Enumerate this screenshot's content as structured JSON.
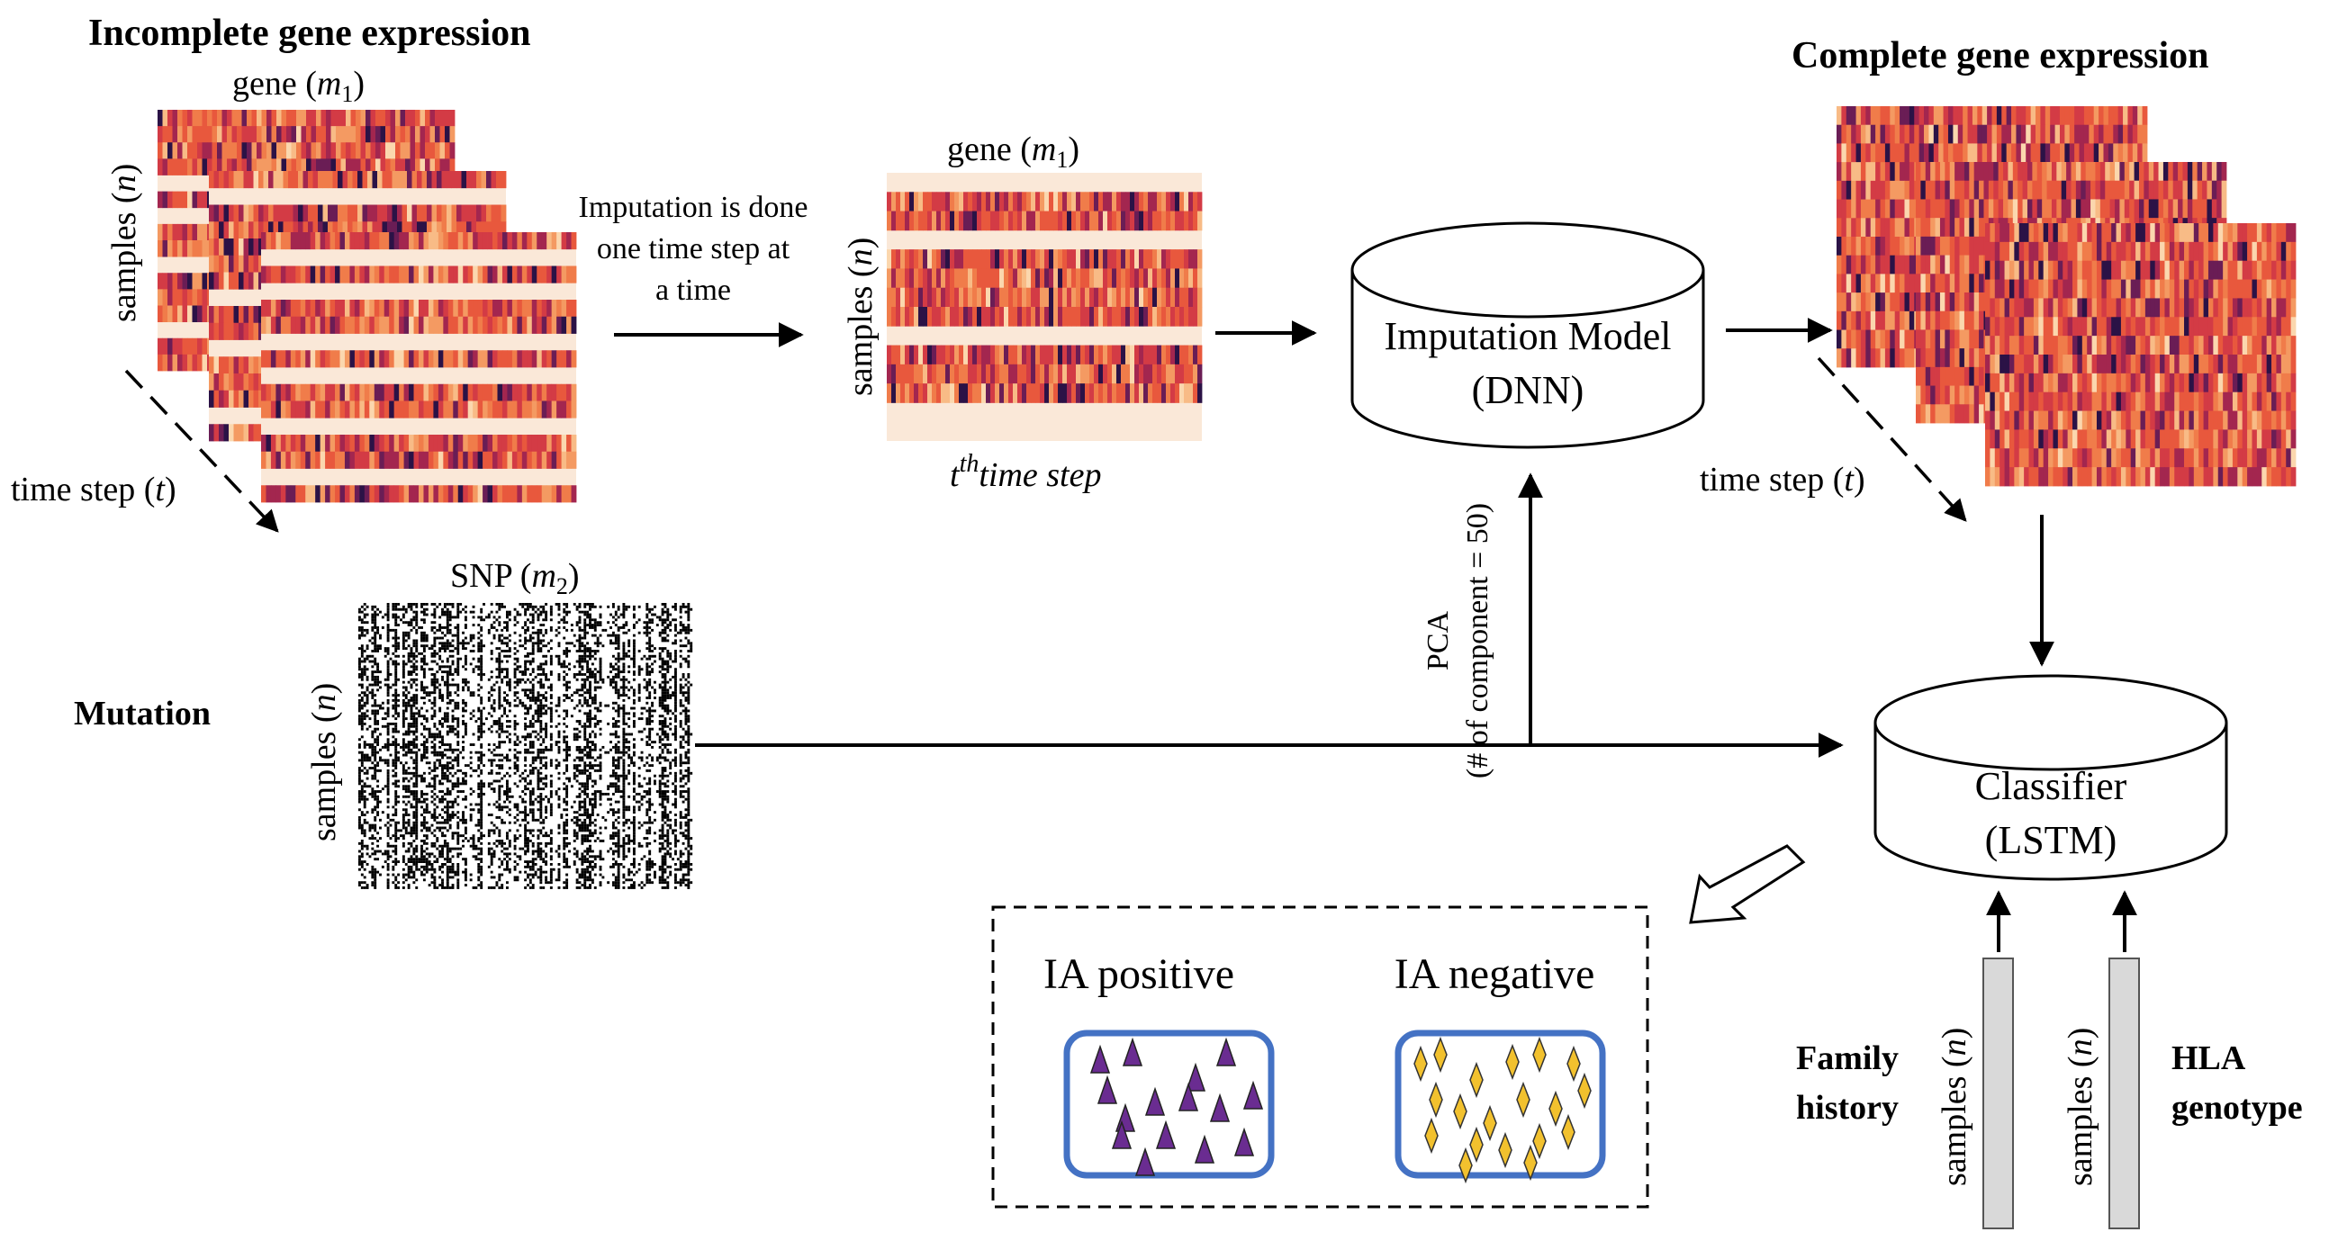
{
  "left": {
    "title": "Incomplete gene expression",
    "gene_label": "gene (",
    "gene_var": "m",
    "gene_sub": "1",
    "close": ")",
    "samples_label": "samples (",
    "samples_var": "n",
    "time_label": "time step (",
    "time_var": "t"
  },
  "imputation_note": [
    "Imputation is done",
    "one time step at",
    "a time"
  ],
  "middle": {
    "gene_label": "gene (",
    "gene_var": "m",
    "gene_sub": "1",
    "samples_label": "samples (",
    "samples_var": "n",
    "time_t": "t",
    "time_sup": "th",
    "time_rest": "time step"
  },
  "imputation_model": {
    "line1": "Imputation Model",
    "line2": "(DNN)"
  },
  "right": {
    "title": "Complete gene expression",
    "time_label": "time step (",
    "time_var": "t"
  },
  "pca": {
    "line1": "PCA",
    "line2": "(# of component = 50)"
  },
  "mutation": {
    "label": "Mutation",
    "snp_label": "SNP (",
    "snp_var": "m",
    "snp_sub": "2",
    "samples_label": "samples (",
    "samples_var": "n"
  },
  "classifier": {
    "line1": "Classifier",
    "line2": "(LSTM)"
  },
  "results": {
    "positive": "IA positive",
    "negative": "IA negative"
  },
  "family": {
    "line1": "Family",
    "line2": "history",
    "samples_label": "samples (",
    "samples_var": "n"
  },
  "hla": {
    "line1": "HLA",
    "line2": "genotype",
    "samples_label": "samples (",
    "samples_var": "n"
  },
  "colors": {
    "heat_missing": "#fae8d8",
    "db_stroke": "#000000",
    "result_border": "#4472c4",
    "triangle_fill": "#6a2c91",
    "diamond_fill": "#f2c12e",
    "bar_fill": "#d9d9d9"
  }
}
